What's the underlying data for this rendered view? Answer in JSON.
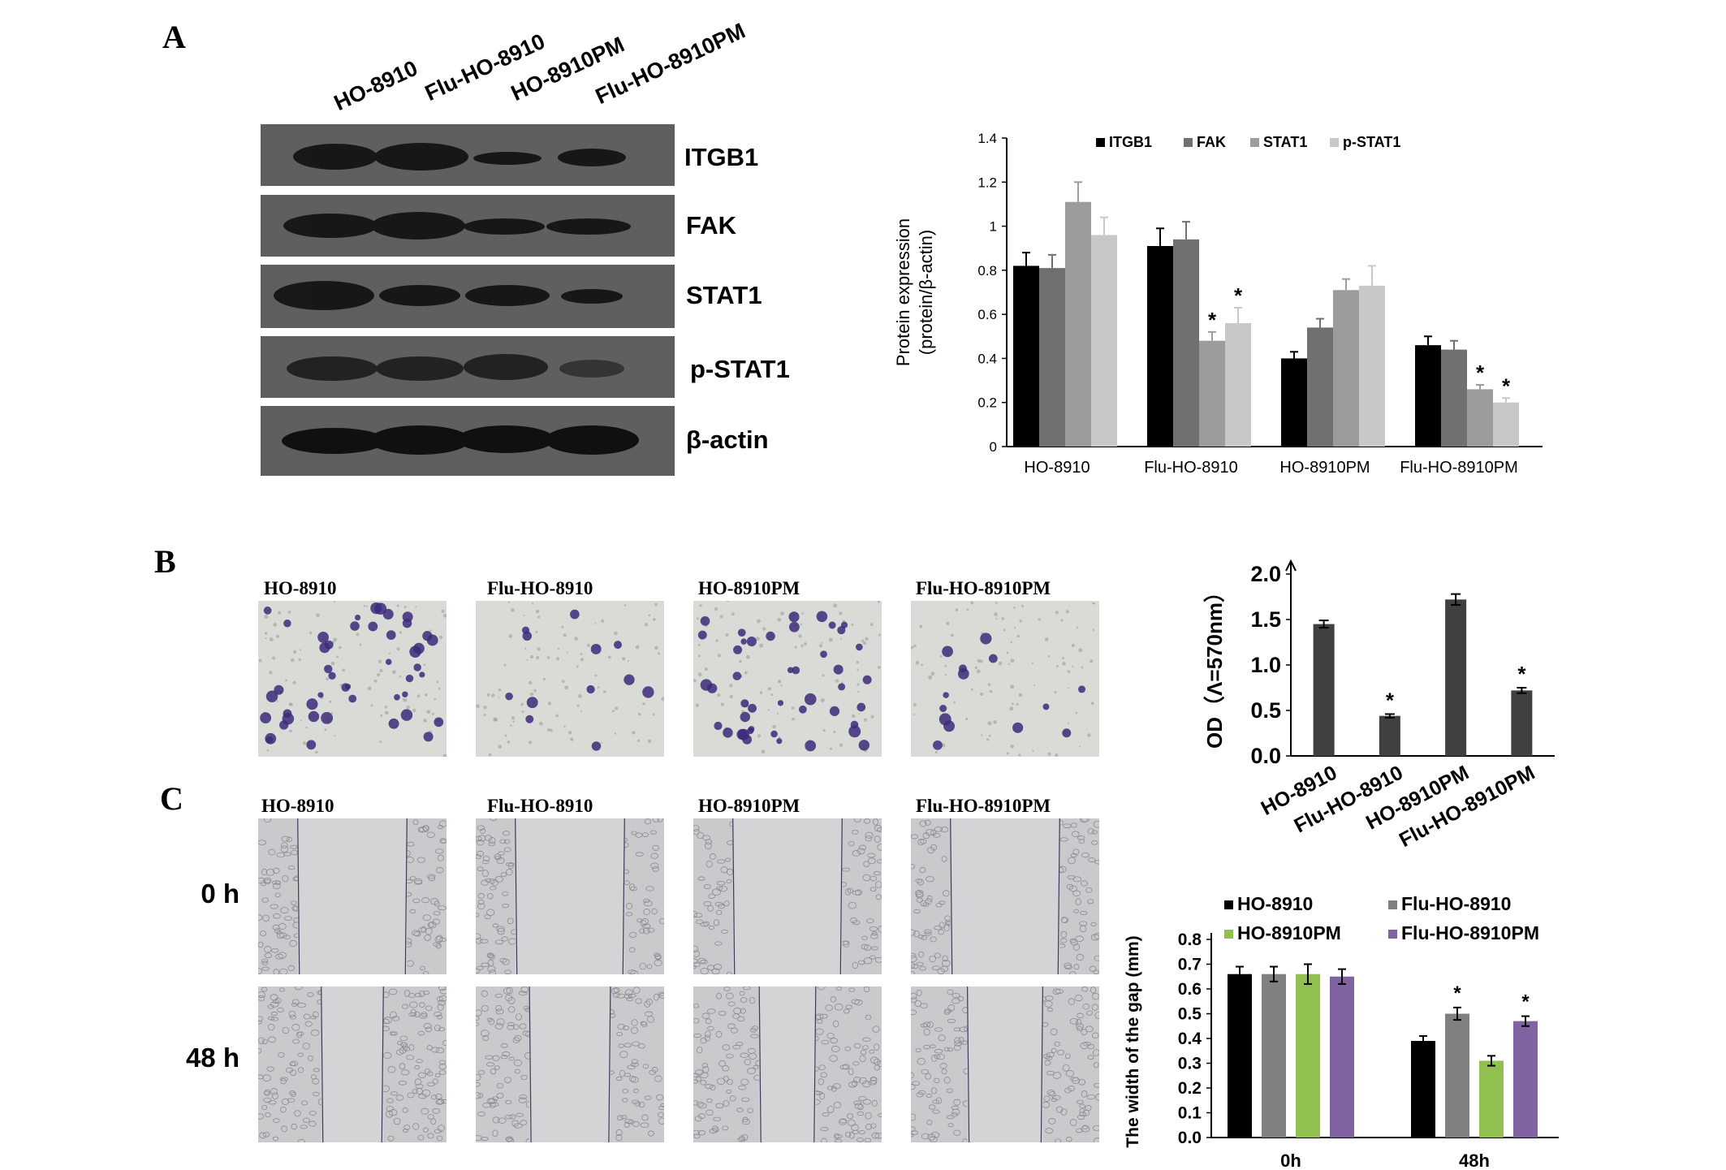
{
  "panels": {
    "a": "A",
    "b": "B",
    "c": "C"
  },
  "blot": {
    "lanes": [
      "HO-8910",
      "Flu-HO-8910",
      "HO-8910PM",
      "Flu-HO-8910PM"
    ],
    "proteins": [
      "ITGB1",
      "FAK",
      "STAT1",
      "p-STAT1",
      "β-actin"
    ]
  },
  "transwell": {
    "labels": [
      "HO-8910",
      "Flu-HO-8910",
      "HO-8910PM",
      "Flu-HO-8910PM"
    ]
  },
  "wound": {
    "labels": [
      "HO-8910",
      "Flu-HO-8910",
      "HO-8910PM",
      "Flu-HO-8910PM"
    ],
    "times": [
      "0 h",
      "48 h"
    ]
  },
  "chart_data": [
    {
      "type": "bar",
      "panel": "A",
      "categories": [
        "HO-8910",
        "Flu-HO-8910",
        "HO-8910PM",
        "Flu-HO-8910PM"
      ],
      "series": [
        {
          "name": "ITGB1",
          "values": [
            0.82,
            0.91,
            0.4,
            0.46
          ],
          "errors": [
            0.06,
            0.08,
            0.03,
            0.04
          ],
          "color": "#000000"
        },
        {
          "name": "FAK",
          "values": [
            0.81,
            0.94,
            0.54,
            0.44
          ],
          "errors": [
            0.06,
            0.08,
            0.04,
            0.04
          ],
          "color": "#707070"
        },
        {
          "name": "STAT1",
          "values": [
            1.11,
            0.48,
            0.71,
            0.26
          ],
          "errors": [
            0.09,
            0.04,
            0.05,
            0.02
          ],
          "color": "#9c9c9c"
        },
        {
          "name": "p-STAT1",
          "values": [
            0.96,
            0.56,
            0.73,
            0.2
          ],
          "errors": [
            0.08,
            0.07,
            0.09,
            0.02
          ],
          "color": "#c8c8c8"
        }
      ],
      "significance": [
        {
          "category": 1,
          "series": 2,
          "label": "*"
        },
        {
          "category": 1,
          "series": 3,
          "label": "*"
        },
        {
          "category": 3,
          "series": 2,
          "label": "*"
        },
        {
          "category": 3,
          "series": 3,
          "label": "*"
        }
      ],
      "ylabel": [
        "Protein expression",
        "(protein/β-actin)"
      ],
      "ylim": [
        0,
        1.4
      ],
      "yticks": [
        "0",
        "0.2",
        "0.4",
        "0.6",
        "0.8",
        "1",
        "1.2",
        "1.4"
      ],
      "legend": "top"
    },
    {
      "type": "bar",
      "panel": "B",
      "categories": [
        "HO-8910",
        "Flu-HO-8910",
        "HO-8910PM",
        "Flu-HO-8910PM"
      ],
      "values": [
        1.45,
        0.44,
        1.72,
        0.72
      ],
      "errors": [
        0.04,
        0.02,
        0.06,
        0.03
      ],
      "significance": [
        "",
        "*",
        "",
        "*"
      ],
      "color": "#404040",
      "ylabel": "OD（Λ=570nm）",
      "ylim": [
        0,
        2.0
      ],
      "yticks": [
        "0.0",
        "0.5",
        "1.0",
        "1.5",
        "2.0"
      ]
    },
    {
      "type": "bar",
      "panel": "C",
      "categories": [
        "0h",
        "48h"
      ],
      "series": [
        {
          "name": "HO-8910",
          "values": [
            0.66,
            0.39
          ],
          "errors": [
            0.03,
            0.02
          ],
          "color": "#000000"
        },
        {
          "name": "Flu-HO-8910",
          "values": [
            0.66,
            0.5
          ],
          "errors": [
            0.03,
            0.025
          ],
          "color": "#808080"
        },
        {
          "name": "HO-8910PM",
          "values": [
            0.66,
            0.31
          ],
          "errors": [
            0.04,
            0.02
          ],
          "color": "#92c050"
        },
        {
          "name": "Flu-HO-8910PM",
          "values": [
            0.65,
            0.47
          ],
          "errors": [
            0.03,
            0.02
          ],
          "color": "#8064a2"
        }
      ],
      "significance": [
        {
          "category": 1,
          "series": 1,
          "label": "*"
        },
        {
          "category": 1,
          "series": 3,
          "label": "*"
        }
      ],
      "ylabel": "The width of the gap  (mm)",
      "ylim": [
        0,
        0.8
      ],
      "yticks": [
        "0.0",
        "0.1",
        "0.2",
        "0.3",
        "0.4",
        "0.5",
        "0.6",
        "0.7",
        "0.8"
      ],
      "legend": "top"
    }
  ]
}
